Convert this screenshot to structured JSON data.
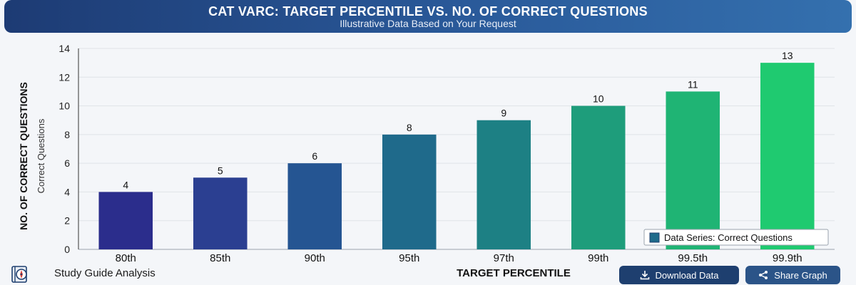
{
  "header": {
    "title": "CAT VARC: TARGET PERCENTILE VS. NO. OF CORRECT QUESTIONS",
    "subtitle": "Illustrative Data Based on Your Request"
  },
  "chart_data": {
    "type": "bar",
    "categories": [
      "80th",
      "85th",
      "90th",
      "95th",
      "97th",
      "99th",
      "99.5th",
      "99.9th"
    ],
    "series": [
      {
        "name": "Data Series: Correct Questions",
        "values": [
          4,
          5,
          6,
          8,
          9,
          10,
          11,
          13
        ]
      }
    ],
    "bar_colors": [
      "#2b2d8c",
      "#2b3f91",
      "#255592",
      "#1f6a8b",
      "#1d8084",
      "#1e9d7b",
      "#1fb474",
      "#1fca70"
    ],
    "xlabel": "TARGET PERCENTILE",
    "ylabel": "NO. OF CORRECT QUESTIONS",
    "ylabel_sub": "Correct Questions",
    "ylim": [
      0,
      14
    ],
    "yticks": [
      0,
      2,
      4,
      6,
      8,
      10,
      12,
      14
    ],
    "grid": true,
    "legend_position": "bottom-right"
  },
  "footer": {
    "brand_label": "Study Guide Analysis",
    "download_label": "Download Data",
    "share_label": "Share Graph"
  },
  "icons": {
    "logo": "compass-book-icon",
    "download": "download-icon",
    "share": "share-icon"
  },
  "colors": {
    "header_start": "#1d3b74",
    "header_end": "#3470ae",
    "button": "#1e3f6f"
  }
}
